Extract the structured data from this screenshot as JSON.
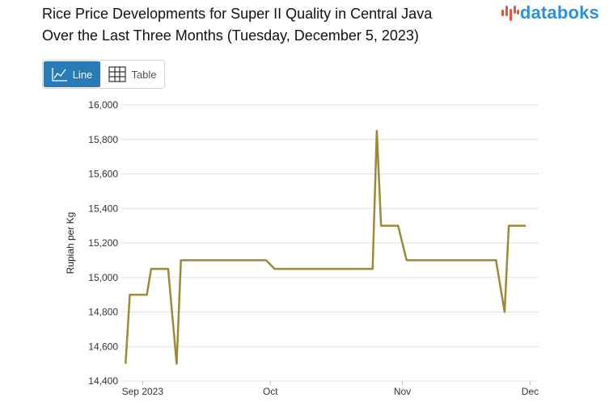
{
  "title_line1": "Rice Price Developments for Super II Quality in Central Java",
  "title_line2": "Over the Last Three Months (Tuesday, December 5, 2023)",
  "brand": {
    "name": "databoks",
    "accent": "#e8523f",
    "color": "#2f8fd8"
  },
  "toggle": {
    "line_label": "Line",
    "table_label": "Table",
    "active": "Line",
    "active_color": "#2a7ab8"
  },
  "chart_data": {
    "type": "line",
    "title": "Rice Price Developments for Super II Quality in Central Java Over the Last Three Months (Tuesday, December 5, 2023)",
    "ylabel": "Rupiah per Kg",
    "xlabel": "",
    "ylim": [
      14400,
      16000
    ],
    "yticks": [
      14400,
      14600,
      14800,
      15000,
      15200,
      15400,
      15600,
      15800,
      16000
    ],
    "ytick_labels": [
      "14,400",
      "14,600",
      "14,800",
      "15,000",
      "15,200",
      "15,400",
      "15,600",
      "15,800",
      "16,000"
    ],
    "xlim": [
      -5,
      93
    ],
    "xticks": [
      {
        "day": 0,
        "label": "Sep 2023"
      },
      {
        "day": 30,
        "label": "Oct"
      },
      {
        "day": 61,
        "label": "Nov"
      },
      {
        "day": 91,
        "label": "Dec"
      }
    ],
    "line_color": "#9b8a35",
    "grid": true,
    "series": [
      {
        "name": "Super II Quality",
        "x": [
          -4,
          -3,
          0,
          1,
          2,
          6,
          8,
          9,
          10,
          14,
          16,
          18,
          26,
          29,
          31,
          36,
          38,
          41,
          43,
          46,
          50,
          52,
          54,
          55,
          56,
          58,
          60,
          62,
          64,
          66,
          68,
          70,
          73,
          74,
          76,
          78,
          83,
          85,
          86,
          87,
          90
        ],
        "values": [
          14500,
          14900,
          14900,
          14900,
          15050,
          15050,
          14500,
          15100,
          15100,
          15100,
          15100,
          15100,
          15100,
          15100,
          15050,
          15050,
          15050,
          15050,
          15050,
          15050,
          15050,
          15050,
          15050,
          15850,
          15300,
          15300,
          15300,
          15100,
          15100,
          15100,
          15100,
          15100,
          15100,
          15100,
          15100,
          15100,
          15100,
          14800,
          15300,
          15300,
          15300
        ]
      }
    ]
  }
}
